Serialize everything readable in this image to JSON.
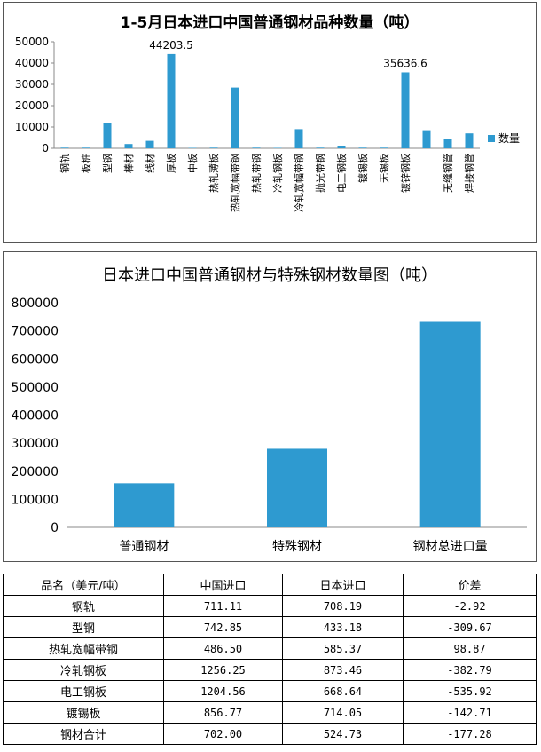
{
  "chart_data": [
    {
      "type": "bar",
      "title": "1-5月日本进口中国普通钢材品种数量（吨）",
      "categories": [
        "钢轨",
        "板桩",
        "型钢",
        "棒材",
        "线材",
        "厚板",
        "中板",
        "热轧薄板",
        "热轧宽幅带钢",
        "热轧带钢",
        "冷轧钢板",
        "冷轧宽幅带钢",
        "抛光带钢",
        "电工钢板",
        "镀锡板",
        "无锡板",
        "镀锌钢板",
        "",
        "无缝钢管",
        "焊接钢管"
      ],
      "series": [
        {
          "name": "数量",
          "values": [
            300,
            300,
            12000,
            2000,
            3500,
            44203.5,
            200,
            300,
            28500,
            300,
            200,
            9000,
            300,
            1200,
            300,
            300,
            35636.6,
            8500,
            4500,
            7000
          ]
        }
      ],
      "data_labels": [
        "44203.5",
        "35636.6"
      ],
      "yticks": [
        "0",
        "10000",
        "20000",
        "30000",
        "40000",
        "50000"
      ],
      "ylim": [
        0,
        50000
      ],
      "legend": "right",
      "color": "#2e9ad0"
    },
    {
      "type": "bar",
      "title": "日本进口中国普通钢材与特殊钢材数量图（吨）",
      "categories": [
        "普通钢材",
        "特殊钢材",
        "钢材总进口量"
      ],
      "series": [
        {
          "values": [
            157000,
            280000,
            732000
          ]
        }
      ],
      "yticks": [
        "0",
        "100000",
        "200000",
        "300000",
        "400000",
        "500000",
        "600000",
        "700000",
        "800000"
      ],
      "ylim": [
        0,
        800000
      ],
      "color": "#2e9ad0"
    }
  ],
  "table": {
    "headers": [
      "品名（美元/吨）",
      "中国进口",
      "日本进口",
      "价差"
    ],
    "rows": [
      [
        "钢轨",
        "711.11",
        "708.19",
        "-2.92"
      ],
      [
        "型钢",
        "742.85",
        "433.18",
        "-309.67"
      ],
      [
        "热轧宽幅带钢",
        "486.50",
        "585.37",
        "98.87"
      ],
      [
        "冷轧钢板",
        "1256.25",
        "873.46",
        "-382.79"
      ],
      [
        "电工钢板",
        "1204.56",
        "668.64",
        "-535.92"
      ],
      [
        "镀锡板",
        "856.77",
        "714.05",
        "-142.71"
      ],
      [
        "钢材合计",
        "702.00",
        "524.73",
        "-177.28"
      ]
    ]
  }
}
